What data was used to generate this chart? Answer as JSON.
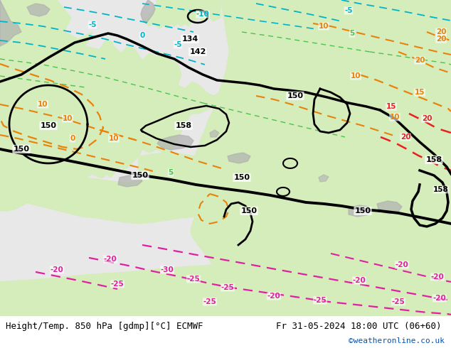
{
  "title_left": "Height/Temp. 850 hPa [gdmp][°C] ECMWF",
  "title_right": "Fr 31-05-2024 18:00 UTC (06+60)",
  "watermark": "©weatheronline.co.uk",
  "ocean_color": "#e8e8e8",
  "land_color_light": "#d4edbb",
  "land_color_mid": "#c5e5a0",
  "gray_color": "#b0b0b0",
  "black": "#000000",
  "orange": "#e8820a",
  "cyan": "#00b4c8",
  "green_contour": "#50c050",
  "red_dash": "#e82020",
  "magenta": "#e020a0",
  "figsize": [
    6.34,
    4.9
  ],
  "dpi": 100
}
